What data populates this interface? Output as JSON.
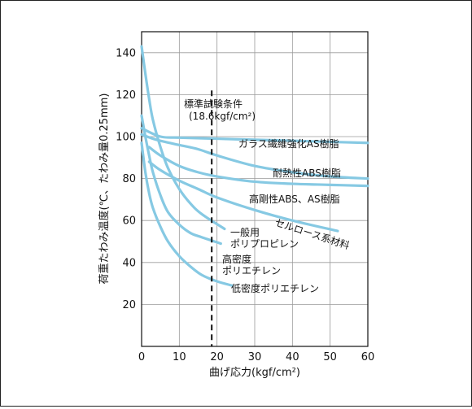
{
  "chart_data": {
    "type": "line",
    "xlabel": "曲げ応力(kgf/cm²)",
    "ylabel": "荷重たわみ温度(℃、たわみ量0.25mm)",
    "xlim": [
      0,
      60
    ],
    "ylim": [
      0,
      150
    ],
    "xticks": [
      0,
      10,
      20,
      30,
      40,
      50,
      60
    ],
    "yticks": [
      20,
      40,
      60,
      80,
      100,
      120,
      140
    ],
    "grid": true,
    "annotation": {
      "line1": "標準試験条件",
      "line2": "(18.6kgf/cm²)",
      "x": 18.6,
      "y_range": [
        0,
        122
      ]
    },
    "series": [
      {
        "name": "ガラス繊維強化AS樹脂",
        "x": [
          0,
          5,
          10,
          20,
          30,
          40,
          50,
          60
        ],
        "y": [
          104,
          100,
          99.5,
          99,
          98.5,
          98,
          97.5,
          97
        ]
      },
      {
        "name": "耐熱性ABS樹脂",
        "x": [
          0,
          3,
          5,
          10,
          15,
          20,
          30,
          40,
          50,
          60
        ],
        "y": [
          101,
          99,
          98,
          96,
          94,
          91,
          86,
          83,
          81,
          80
        ]
      },
      {
        "name": "高剛性ABS、AS樹脂",
        "x": [
          2,
          5,
          10,
          15,
          20,
          30,
          40,
          50,
          60
        ],
        "y": [
          95,
          91,
          86,
          83,
          81,
          78.5,
          77.5,
          77,
          76.5
        ]
      },
      {
        "name": "セルロース系材料",
        "x": [
          2,
          5,
          10,
          15,
          20,
          30,
          40,
          52
        ],
        "y": [
          88,
          84,
          79,
          75,
          71,
          65,
          60,
          55
        ]
      },
      {
        "name": "一般用 ポリプロピレン",
        "x": [
          0,
          1,
          2,
          3,
          5,
          7,
          10,
          13,
          16,
          22
        ],
        "y": [
          143,
          130,
          118,
          108,
          95,
          85,
          75,
          68,
          63,
          56
        ]
      },
      {
        "name": "高密度 ポリエチレン",
        "x": [
          0,
          1,
          2,
          3,
          5,
          7,
          10,
          13,
          16,
          21
        ],
        "y": [
          110,
          100,
          91,
          83,
          72,
          64,
          58,
          54,
          52,
          49
        ]
      },
      {
        "name": "低密度ポリエチレン",
        "x": [
          0,
          1,
          2,
          3,
          5,
          7,
          10,
          13,
          16,
          20,
          24
        ],
        "y": [
          97,
          83,
          73,
          66,
          57,
          50,
          43,
          38,
          34,
          31,
          29
        ]
      }
    ]
  }
}
